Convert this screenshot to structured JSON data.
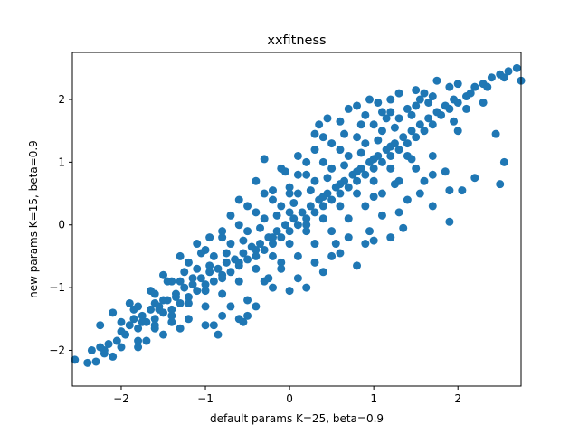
{
  "chart_data": {
    "type": "scatter",
    "title": "xxfitness",
    "xlabel": "default params K=25, beta=0.9",
    "ylabel": "new params K=15, beta=0.9",
    "xlim": [
      -2.58,
      2.75
    ],
    "ylim": [
      -2.57,
      2.75
    ],
    "xticks": [
      -2,
      -1,
      0,
      1,
      2
    ],
    "yticks": [
      -2,
      -1,
      0,
      1,
      2
    ],
    "grid": false,
    "marker_color": "#1f77b4",
    "series": [
      {
        "name": "",
        "points": [
          [
            -2.55,
            -2.15
          ],
          [
            -2.4,
            -2.2
          ],
          [
            -2.3,
            -2.18
          ],
          [
            -2.2,
            -2.05
          ],
          [
            -2.1,
            -2.1
          ],
          [
            -2.35,
            -2.0
          ],
          [
            -2.25,
            -1.95
          ],
          [
            -2.15,
            -1.9
          ],
          [
            -2.05,
            -1.85
          ],
          [
            -2.0,
            -1.7
          ],
          [
            -1.95,
            -1.75
          ],
          [
            -1.9,
            -1.6
          ],
          [
            -2.25,
            -1.6
          ],
          [
            -2.0,
            -1.55
          ],
          [
            -1.85,
            -1.5
          ],
          [
            -1.8,
            -1.65
          ],
          [
            -1.75,
            -1.45
          ],
          [
            -1.7,
            -1.55
          ],
          [
            -1.65,
            -1.35
          ],
          [
            -1.6,
            -1.5
          ],
          [
            -1.55,
            -1.3
          ],
          [
            -1.5,
            -1.4
          ],
          [
            -1.45,
            -1.2
          ],
          [
            -1.4,
            -1.35
          ],
          [
            -1.35,
            -1.1
          ],
          [
            -1.3,
            -1.25
          ],
          [
            -1.25,
            -1.0
          ],
          [
            -1.2,
            -1.15
          ],
          [
            -1.15,
            -0.95
          ],
          [
            -1.1,
            -1.05
          ],
          [
            -1.05,
            -0.85
          ],
          [
            -1.0,
            -0.95
          ],
          [
            -0.95,
            -0.75
          ],
          [
            -0.9,
            -0.9
          ],
          [
            -0.85,
            -0.7
          ],
          [
            -0.8,
            -0.8
          ],
          [
            -0.75,
            -0.6
          ],
          [
            -0.7,
            -0.75
          ],
          [
            -0.65,
            -0.55
          ],
          [
            -0.6,
            -0.65
          ],
          [
            -0.55,
            -0.45
          ],
          [
            -0.5,
            -0.55
          ],
          [
            -0.45,
            -0.35
          ],
          [
            -0.4,
            -0.5
          ],
          [
            -0.35,
            -0.3
          ],
          [
            -0.3,
            -0.4
          ],
          [
            -0.25,
            -0.2
          ],
          [
            -0.2,
            -0.3
          ],
          [
            -0.15,
            -0.1
          ],
          [
            -0.1,
            -0.2
          ],
          [
            -0.05,
            0.0
          ],
          [
            0.0,
            -0.1
          ],
          [
            0.05,
            0.1
          ],
          [
            0.1,
            0.0
          ],
          [
            0.15,
            0.2
          ],
          [
            0.2,
            0.1
          ],
          [
            0.25,
            0.3
          ],
          [
            0.3,
            0.2
          ],
          [
            0.35,
            0.4
          ],
          [
            0.4,
            0.3
          ],
          [
            0.45,
            0.5
          ],
          [
            0.5,
            0.4
          ],
          [
            0.55,
            0.6
          ],
          [
            0.6,
            0.5
          ],
          [
            0.65,
            0.7
          ],
          [
            0.7,
            0.6
          ],
          [
            0.75,
            0.8
          ],
          [
            0.8,
            0.7
          ],
          [
            0.85,
            0.9
          ],
          [
            0.9,
            0.8
          ],
          [
            0.95,
            1.0
          ],
          [
            1.0,
            0.9
          ],
          [
            1.05,
            1.1
          ],
          [
            1.1,
            1.0
          ],
          [
            1.15,
            1.2
          ],
          [
            1.2,
            1.1
          ],
          [
            1.25,
            1.3
          ],
          [
            1.3,
            1.2
          ],
          [
            1.35,
            1.4
          ],
          [
            1.4,
            1.3
          ],
          [
            1.45,
            1.5
          ],
          [
            1.5,
            1.4
          ],
          [
            1.55,
            1.6
          ],
          [
            1.6,
            1.5
          ],
          [
            1.65,
            1.7
          ],
          [
            1.7,
            1.6
          ],
          [
            1.75,
            1.8
          ],
          [
            1.8,
            1.75
          ],
          [
            1.85,
            1.9
          ],
          [
            1.9,
            1.85
          ],
          [
            1.95,
            2.0
          ],
          [
            2.0,
            1.95
          ],
          [
            2.1,
            2.05
          ],
          [
            2.15,
            2.1
          ],
          [
            2.2,
            2.2
          ],
          [
            2.3,
            2.25
          ],
          [
            2.4,
            2.35
          ],
          [
            2.5,
            2.4
          ],
          [
            2.6,
            2.45
          ],
          [
            2.7,
            2.5
          ],
          [
            2.75,
            2.3
          ],
          [
            2.55,
            2.35
          ],
          [
            -1.5,
            -1.2
          ],
          [
            -1.3,
            -0.9
          ],
          [
            -1.1,
            -0.7
          ],
          [
            -0.9,
            -0.5
          ],
          [
            -0.7,
            -0.3
          ],
          [
            -0.5,
            -0.1
          ],
          [
            -0.3,
            0.1
          ],
          [
            -0.1,
            0.3
          ],
          [
            0.1,
            0.5
          ],
          [
            0.3,
            0.7
          ],
          [
            0.5,
            0.9
          ],
          [
            0.7,
            1.1
          ],
          [
            0.9,
            1.3
          ],
          [
            1.1,
            1.5
          ],
          [
            1.3,
            1.7
          ],
          [
            1.5,
            1.9
          ],
          [
            -1.2,
            -1.5
          ],
          [
            -1.0,
            -1.3
          ],
          [
            -0.8,
            -1.1
          ],
          [
            -0.6,
            -0.9
          ],
          [
            -0.4,
            -0.7
          ],
          [
            -0.2,
            -0.5
          ],
          [
            0.0,
            -0.3
          ],
          [
            0.2,
            -0.1
          ],
          [
            0.4,
            0.1
          ],
          [
            0.6,
            0.3
          ],
          [
            0.8,
            0.5
          ],
          [
            1.0,
            0.7
          ],
          [
            1.2,
            0.9
          ],
          [
            1.4,
            1.1
          ],
          [
            -1.8,
            -1.3
          ],
          [
            -1.6,
            -1.1
          ],
          [
            -1.4,
            -0.9
          ],
          [
            -1.2,
            -0.6
          ],
          [
            -1.0,
            -0.4
          ],
          [
            -0.8,
            -0.2
          ],
          [
            -0.6,
            0.0
          ],
          [
            -0.4,
            0.2
          ],
          [
            -0.2,
            0.4
          ],
          [
            0.0,
            0.6
          ],
          [
            0.2,
            0.8
          ],
          [
            0.4,
            1.0
          ],
          [
            0.6,
            1.2
          ],
          [
            0.8,
            1.4
          ],
          [
            1.0,
            1.6
          ],
          [
            1.2,
            1.8
          ],
          [
            -1.0,
            -1.6
          ],
          [
            -0.7,
            -1.3
          ],
          [
            -0.5,
            -1.2
          ],
          [
            -0.3,
            -0.9
          ],
          [
            -0.1,
            -0.7
          ],
          [
            0.1,
            -0.5
          ],
          [
            0.3,
            -0.3
          ],
          [
            0.5,
            -0.1
          ],
          [
            0.7,
            0.1
          ],
          [
            0.9,
            0.3
          ],
          [
            1.1,
            0.5
          ],
          [
            1.3,
            0.7
          ],
          [
            1.5,
            0.9
          ],
          [
            1.7,
            1.1
          ],
          [
            -1.75,
            -1.55
          ],
          [
            -1.55,
            -1.35
          ],
          [
            -1.35,
            -1.15
          ],
          [
            -1.15,
            -0.85
          ],
          [
            -0.95,
            -0.65
          ],
          [
            -0.75,
            -0.45
          ],
          [
            -0.55,
            -0.25
          ],
          [
            -0.35,
            -0.05
          ],
          [
            -0.15,
            0.15
          ],
          [
            0.05,
            0.35
          ],
          [
            0.25,
            0.55
          ],
          [
            0.45,
            0.75
          ],
          [
            0.65,
            0.95
          ],
          [
            0.85,
            1.15
          ],
          [
            1.05,
            1.35
          ],
          [
            1.25,
            1.55
          ],
          [
            1.45,
            1.75
          ],
          [
            1.65,
            1.95
          ],
          [
            0.0,
            0.5
          ],
          [
            0.1,
            0.8
          ],
          [
            0.2,
            1.0
          ],
          [
            -0.1,
            0.9
          ],
          [
            0.3,
            1.2
          ],
          [
            0.5,
            1.3
          ],
          [
            0.4,
            1.4
          ],
          [
            0.8,
            1.9
          ],
          [
            0.95,
            2.0
          ],
          [
            1.1,
            1.8
          ],
          [
            1.05,
            1.95
          ],
          [
            1.2,
            2.0
          ],
          [
            1.3,
            2.1
          ],
          [
            1.5,
            2.15
          ],
          [
            1.6,
            2.1
          ],
          [
            1.9,
            2.2
          ],
          [
            1.75,
            2.3
          ],
          [
            2.0,
            2.25
          ],
          [
            -0.3,
            0.5
          ],
          [
            -0.5,
            0.3
          ],
          [
            -0.8,
            -0.1
          ],
          [
            -0.95,
            -0.2
          ],
          [
            -1.3,
            -0.5
          ],
          [
            -1.5,
            -0.8
          ],
          [
            -1.65,
            -1.05
          ],
          [
            -1.9,
            -1.25
          ],
          [
            -2.1,
            -1.4
          ],
          [
            -0.3,
            1.05
          ],
          [
            0.1,
            1.1
          ],
          [
            0.6,
            1.65
          ],
          [
            0.45,
            1.7
          ],
          [
            0.9,
            1.75
          ],
          [
            -0.05,
            0.85
          ],
          [
            -0.2,
            0.55
          ],
          [
            1.45,
            1.05
          ],
          [
            1.6,
            0.7
          ],
          [
            1.85,
            0.85
          ],
          [
            1.9,
            0.55
          ],
          [
            2.05,
            0.55
          ],
          [
            2.2,
            0.75
          ],
          [
            2.55,
            1.0
          ],
          [
            2.5,
            0.65
          ],
          [
            1.9,
            0.05
          ],
          [
            1.7,
            0.3
          ],
          [
            1.3,
            0.2
          ],
          [
            1.2,
            -0.2
          ],
          [
            1.0,
            -0.25
          ],
          [
            0.9,
            -0.3
          ],
          [
            0.8,
            -0.65
          ],
          [
            0.6,
            -0.45
          ],
          [
            0.5,
            -0.5
          ],
          [
            0.3,
            -0.6
          ],
          [
            0.4,
            -0.75
          ],
          [
            0.1,
            -0.85
          ],
          [
            0.2,
            -1.0
          ],
          [
            0.0,
            -1.05
          ],
          [
            -0.2,
            -1.0
          ],
          [
            -0.4,
            -1.3
          ],
          [
            -0.5,
            -1.45
          ],
          [
            -0.6,
            -1.5
          ],
          [
            -0.8,
            -1.45
          ],
          [
            -0.9,
            -1.6
          ],
          [
            -0.85,
            -1.75
          ],
          [
            -0.55,
            -1.55
          ],
          [
            -1.3,
            -1.65
          ],
          [
            -1.5,
            -1.75
          ],
          [
            -1.7,
            -1.85
          ],
          [
            -1.8,
            -1.95
          ],
          [
            -1.6,
            -1.6
          ],
          [
            -1.4,
            -1.55
          ],
          [
            1.35,
            -0.05
          ],
          [
            1.55,
            0.5
          ],
          [
            1.7,
            0.8
          ],
          [
            1.4,
            0.4
          ],
          [
            1.1,
            0.15
          ],
          [
            0.95,
            -0.1
          ],
          [
            0.7,
            -0.2
          ],
          [
            0.55,
            -0.3
          ],
          [
            -0.25,
            -0.85
          ],
          [
            -0.1,
            -0.6
          ],
          [
            1.0,
            0.45
          ],
          [
            1.25,
            0.65
          ],
          [
            2.0,
            1.5
          ],
          [
            2.1,
            1.85
          ],
          [
            2.3,
            1.95
          ],
          [
            2.45,
            1.45
          ],
          [
            2.35,
            2.2
          ],
          [
            1.95,
            1.65
          ],
          [
            0.3,
            1.45
          ],
          [
            0.35,
            1.6
          ],
          [
            0.7,
            1.85
          ],
          [
            -0.6,
            0.4
          ],
          [
            -0.7,
            0.15
          ],
          [
            -0.4,
            0.7
          ],
          [
            -1.1,
            -0.3
          ],
          [
            -1.05,
            -0.45
          ],
          [
            -1.25,
            -0.75
          ],
          [
            -1.45,
            -0.9
          ],
          [
            -1.6,
            -1.25
          ],
          [
            -1.85,
            -1.35
          ],
          [
            0.65,
            1.45
          ],
          [
            0.85,
            1.6
          ],
          [
            1.15,
            1.7
          ],
          [
            1.4,
            1.85
          ],
          [
            1.55,
            2.0
          ],
          [
            1.7,
            2.05
          ],
          [
            0.2,
            0.0
          ],
          [
            0.0,
            0.2
          ],
          [
            -0.2,
            -0.2
          ],
          [
            0.4,
            0.45
          ],
          [
            0.6,
            0.65
          ],
          [
            0.8,
            0.85
          ],
          [
            1.0,
            1.05
          ],
          [
            1.2,
            1.25
          ],
          [
            -0.4,
            -0.4
          ],
          [
            -0.6,
            -0.6
          ],
          [
            -0.8,
            -0.85
          ],
          [
            -1.0,
            -1.05
          ],
          [
            -1.2,
            -1.25
          ],
          [
            -1.4,
            -1.45
          ],
          [
            -1.6,
            -1.65
          ],
          [
            -1.8,
            -1.85
          ],
          [
            -2.0,
            -1.95
          ],
          [
            -2.2,
            -2.0
          ]
        ]
      }
    ]
  }
}
